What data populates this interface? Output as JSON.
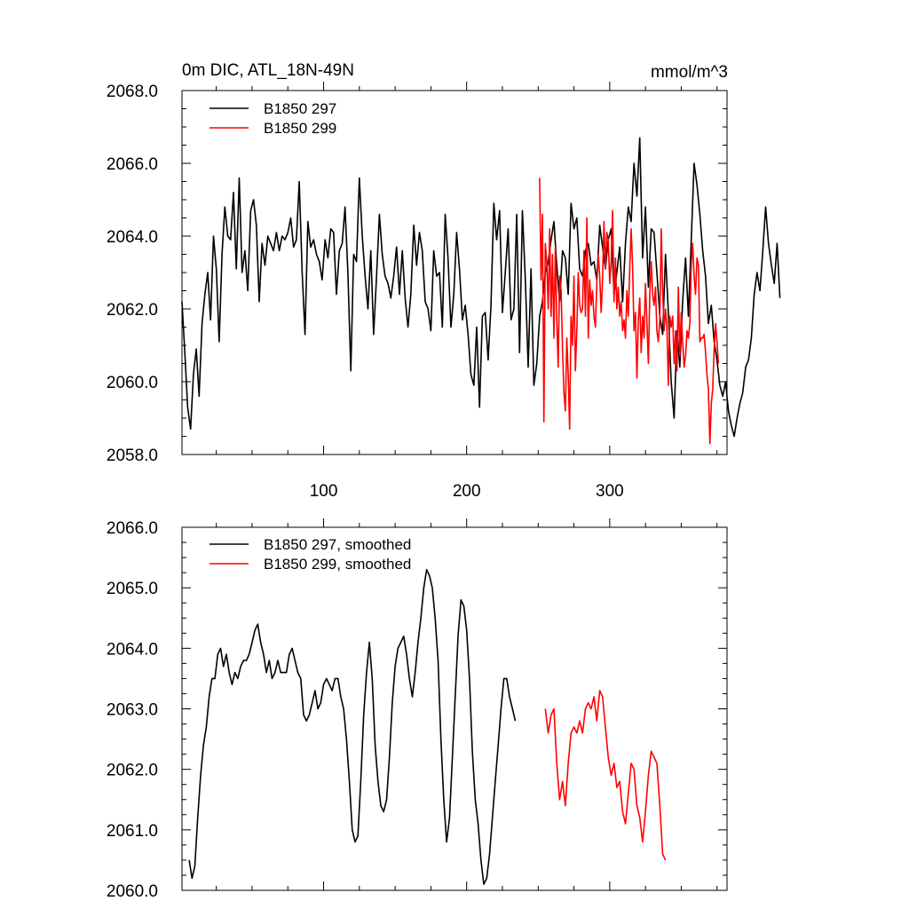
{
  "chart_data": [
    {
      "type": "line",
      "title": "0m DIC, ATL_18N-49N",
      "units": "mmol/m^3",
      "xlim": [
        1,
        382
      ],
      "ylim": [
        2058.0,
        2068.0
      ],
      "x_ticks": [
        100,
        200,
        300
      ],
      "x_tick_labels": [
        "100",
        "200",
        "300"
      ],
      "y_ticks": [
        2058.0,
        2060.0,
        2062.0,
        2064.0,
        2066.0,
        2068.0
      ],
      "y_tick_labels": [
        "2058.0",
        "2060.0",
        "2062.0",
        "2064.0",
        "2066.0",
        "2068.0"
      ],
      "legend_position": "top-left",
      "series": [
        {
          "name": "B1850 297",
          "color": "#000000",
          "x_start": 1,
          "x_step": 2,
          "values": [
            2062.2,
            2060.8,
            2059.3,
            2058.7,
            2060.2,
            2060.9,
            2059.6,
            2061.6,
            2062.4,
            2063.0,
            2061.7,
            2064.0,
            2063.1,
            2061.1,
            2063.5,
            2064.8,
            2064.0,
            2063.9,
            2065.2,
            2063.1,
            2065.6,
            2063.0,
            2063.6,
            2062.5,
            2064.7,
            2065.0,
            2064.3,
            2062.2,
            2063.8,
            2063.2,
            2064.0,
            2063.8,
            2063.6,
            2064.1,
            2063.6,
            2064.0,
            2063.9,
            2064.1,
            2064.5,
            2063.7,
            2063.9,
            2065.5,
            2063.0,
            2061.3,
            2064.4,
            2063.7,
            2063.9,
            2063.5,
            2063.3,
            2062.8,
            2063.9,
            2063.4,
            2064.2,
            2064.1,
            2062.4,
            2063.6,
            2063.8,
            2064.8,
            2063.0,
            2060.3,
            2063.5,
            2063.3,
            2065.6,
            2064.0,
            2062.9,
            2062.0,
            2063.6,
            2061.3,
            2062.9,
            2064.6,
            2063.5,
            2062.9,
            2062.7,
            2062.3,
            2062.9,
            2063.7,
            2062.4,
            2063.6,
            2062.3,
            2061.5,
            2062.4,
            2064.3,
            2063.2,
            2064.1,
            2063.6,
            2062.2,
            2062.0,
            2061.4,
            2063.6,
            2062.9,
            2063.0,
            2061.5,
            2064.6,
            2063.4,
            2061.5,
            2062.4,
            2064.1,
            2063.1,
            2061.7,
            2062.1,
            2061.3,
            2060.2,
            2059.9,
            2061.5,
            2059.3,
            2061.8,
            2061.9,
            2060.6,
            2062.1,
            2064.9,
            2063.9,
            2064.7,
            2061.9,
            2063.0,
            2064.2,
            2061.7,
            2062.0,
            2064.6,
            2060.8,
            2064.7,
            2062.8,
            2060.4,
            2063.1,
            2059.9,
            2060.5,
            2061.8,
            2062.2,
            2063.0,
            2063.3,
            2063.9,
            2064.4,
            2063.2,
            2062.2,
            2063.6,
            2063.4,
            2062.4,
            2064.9,
            2064.2,
            2064.5,
            2063.1,
            2062.9,
            2063.6,
            2063.8,
            2063.2,
            2063.3,
            2062.8,
            2064.3,
            2063.7,
            2063.1,
            2063.9,
            2064.2,
            2062.4,
            2063.0,
            2063.7,
            2062.2,
            2063.8,
            2064.8,
            2064.4,
            2066.0,
            2065.1,
            2066.7,
            2063.4,
            2064.8,
            2062.6,
            2064.2,
            2064.1,
            2063.0,
            2061.8,
            2061.3,
            2063.5,
            2061.9,
            2060.0,
            2059.0,
            2061.4,
            2060.4,
            2062.2,
            2063.4,
            2061.8,
            2063.9,
            2066.0,
            2065.4,
            2064.6,
            2063.6,
            2062.9,
            2061.6,
            2062.1,
            2061.1,
            2060.6,
            2059.9,
            2059.6,
            2060.0,
            2059.2,
            2058.8,
            2058.5,
            2059.0,
            2059.4,
            2059.7,
            2060.4,
            2060.6,
            2061.2,
            2062.4,
            2063.0,
            2062.5,
            2063.6,
            2064.8,
            2063.8,
            2063.2,
            2062.7,
            2063.8,
            2062.3
          ]
        },
        {
          "name": "B1850 299",
          "color": "#ff0000",
          "x_start": 251,
          "x_step": 1,
          "values": [
            2065.6,
            2062.8,
            2064.6,
            2058.9,
            2063.8,
            2063.3,
            2062.0,
            2064.2,
            2061.8,
            2063.5,
            2061.2,
            2063.7,
            2061.7,
            2060.4,
            2062.9,
            2062.5,
            2060.9,
            2059.7,
            2059.2,
            2061.2,
            2060.2,
            2058.7,
            2061.8,
            2061.0,
            2062.9,
            2060.3,
            2061.4,
            2063.0,
            2062.1,
            2061.9,
            2062.0,
            2063.6,
            2061.8,
            2064.5,
            2061.2,
            2062.8,
            2062.1,
            2062.5,
            2061.8,
            2061.5,
            2062.7,
            2063.5,
            2062.9,
            2061.9,
            2062.8,
            2064.4,
            2063.1,
            2064.1,
            2063.9,
            2062.7,
            2063.3,
            2064.7,
            2062.2,
            2063.4,
            2062.0,
            2062.6,
            2061.8,
            2062.2,
            2061.4,
            2061.7,
            2061.2,
            2062.5,
            2061.8,
            2063.1,
            2064.2,
            2063.2,
            2061.4,
            2061.9,
            2060.1,
            2061.7,
            2062.3,
            2060.8,
            2061.8,
            2061.2,
            2062.7,
            2061.6,
            2060.5,
            2062.4,
            2063.3,
            2062.4,
            2062.1,
            2062.6,
            2061.4,
            2061.1,
            2061.7,
            2064.2,
            2062.5,
            2061.4,
            2062.0,
            2061.5,
            2059.9,
            2061.8,
            2061.5,
            2061.8,
            2060.5,
            2061.4,
            2060.3,
            2062.6,
            2060.7,
            2061.9,
            2061.1,
            2060.4,
            2060.7,
            2061.4,
            2061.2,
            2061.6,
            2063.2,
            2063.8,
            2062.9,
            2062.4,
            2063.4,
            2063.2,
            2061.1,
            2061.2,
            2061.2,
            2061.3,
            2060.8,
            2060.2,
            2059.8,
            2058.3,
            2059.4,
            2059.8,
            2060.9,
            2061.6,
            2061.1,
            2060.5
          ]
        }
      ]
    },
    {
      "type": "line",
      "xlim": [
        1,
        382
      ],
      "ylim": [
        2060.0,
        2066.0
      ],
      "x_ticks": [
        100,
        200,
        300
      ],
      "x_tick_labels": [
        "",
        "",
        ""
      ],
      "y_ticks": [
        2060.0,
        2061.0,
        2062.0,
        2063.0,
        2064.0,
        2065.0,
        2066.0
      ],
      "y_tick_labels": [
        "2060.0",
        "2061.0",
        "2062.0",
        "2063.0",
        "2064.0",
        "2065.0",
        "2066.0"
      ],
      "legend_position": "top-left",
      "series": [
        {
          "name": "B1850 297, smoothed",
          "color": "#000000",
          "x_start": 6,
          "x_step": 2,
          "values": [
            2060.5,
            2060.2,
            2060.4,
            2061.2,
            2061.9,
            2062.4,
            2062.7,
            2063.2,
            2063.5,
            2063.5,
            2063.9,
            2064.0,
            2063.7,
            2063.9,
            2063.6,
            2063.4,
            2063.6,
            2063.5,
            2063.7,
            2063.8,
            2063.8,
            2063.9,
            2064.1,
            2064.3,
            2064.4,
            2064.1,
            2063.9,
            2063.6,
            2063.8,
            2063.5,
            2063.6,
            2063.8,
            2063.6,
            2063.6,
            2063.6,
            2063.9,
            2064.0,
            2063.8,
            2063.6,
            2063.5,
            2062.9,
            2062.8,
            2062.9,
            2063.1,
            2063.3,
            2063.0,
            2063.1,
            2063.4,
            2063.5,
            2063.4,
            2063.3,
            2063.5,
            2063.5,
            2063.2,
            2063.0,
            2062.5,
            2061.8,
            2061.0,
            2060.8,
            2060.9,
            2061.8,
            2062.9,
            2063.6,
            2064.1,
            2063.5,
            2062.4,
            2061.8,
            2061.4,
            2061.3,
            2061.5,
            2062.2,
            2063.1,
            2063.7,
            2064.0,
            2064.1,
            2064.2,
            2063.9,
            2063.5,
            2063.2,
            2063.6,
            2064.1,
            2064.5,
            2065.0,
            2065.3,
            2065.2,
            2065.0,
            2064.5,
            2063.8,
            2062.5,
            2061.5,
            2060.8,
            2061.2,
            2062.2,
            2063.2,
            2064.2,
            2064.8,
            2064.7,
            2064.3,
            2063.5,
            2062.3,
            2061.5,
            2061.1,
            2060.5,
            2060.1,
            2060.2,
            2060.6,
            2061.2,
            2061.8,
            2062.4,
            2063.0,
            2063.5,
            2063.5,
            2063.2,
            2063.0,
            2062.8
          ]
        },
        {
          "name": "B1850 299, smoothed",
          "color": "#ff0000",
          "x_start": 255,
          "x_step": 2,
          "values": [
            2063.0,
            2062.6,
            2062.9,
            2063.0,
            2062.1,
            2061.5,
            2061.8,
            2061.4,
            2062.1,
            2062.6,
            2062.7,
            2062.6,
            2062.8,
            2062.6,
            2063.0,
            2063.1,
            2063.0,
            2063.2,
            2062.8,
            2063.3,
            2063.2,
            2062.7,
            2062.2,
            2061.9,
            2062.1,
            2061.7,
            2061.8,
            2061.3,
            2061.1,
            2061.6,
            2062.1,
            2062.0,
            2061.4,
            2061.2,
            2060.8,
            2061.3,
            2061.9,
            2062.3,
            2062.2,
            2062.1,
            2061.4,
            2060.6,
            2060.5
          ]
        }
      ]
    }
  ]
}
